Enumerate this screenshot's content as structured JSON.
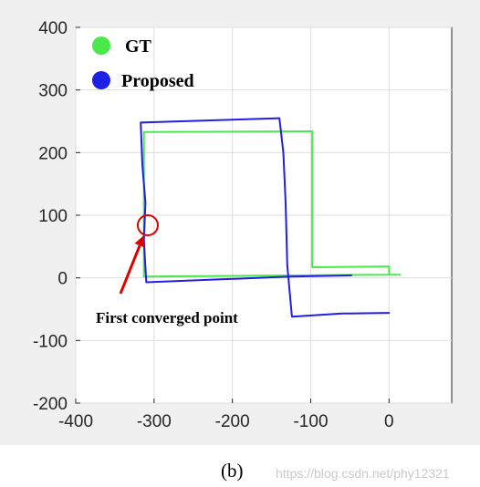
{
  "chart_data": {
    "type": "line",
    "xlim": [
      -400,
      80
    ],
    "ylim": [
      -200,
      400
    ],
    "x_ticks": [
      "-400",
      "-300",
      "-200",
      "-100",
      "0"
    ],
    "y_ticks": [
      "400",
      "300",
      "200",
      "100",
      "0",
      "-100",
      "-200"
    ],
    "grid": true,
    "legend_position": "top-left",
    "series": [
      {
        "name": "GT",
        "color": "#4be84b",
        "points": [
          [
            14,
            5
          ],
          [
            0,
            5
          ],
          [
            -313,
            2
          ],
          [
            -313,
            233
          ],
          [
            -98,
            234
          ],
          [
            -98,
            17
          ],
          [
            0,
            18
          ],
          [
            0,
            5
          ]
        ]
      },
      {
        "name": "Proposed",
        "color": "#1f1fe6",
        "points": [
          [
            -48,
            4
          ],
          [
            -125,
            2
          ],
          [
            -310,
            -7
          ],
          [
            -313,
            60
          ],
          [
            -311,
            120
          ],
          [
            -315,
            180
          ],
          [
            -317,
            248
          ],
          [
            -140,
            255
          ],
          [
            -135,
            200
          ],
          [
            -132,
            120
          ],
          [
            -130,
            20
          ],
          [
            -124,
            -62
          ],
          [
            -60,
            -57
          ],
          [
            0,
            -56
          ]
        ]
      }
    ],
    "annotations": {
      "label": "First converged point",
      "marker_point": [
        -308,
        84
      ],
      "marker_color": "#e00000"
    }
  },
  "caption": "(b)",
  "watermark": "https://blog.csdn.net/phy12321"
}
